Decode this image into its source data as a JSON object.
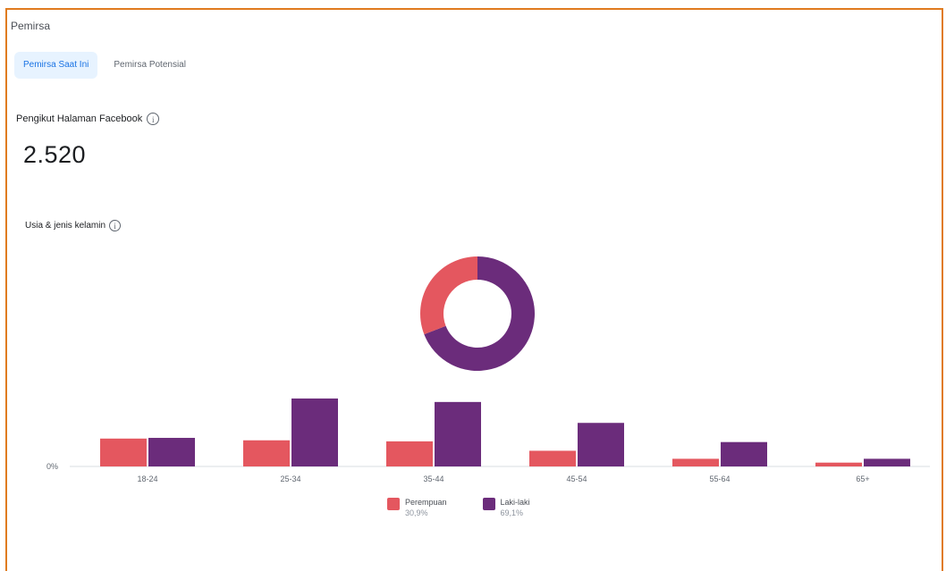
{
  "section": {
    "title": "Pemirsa"
  },
  "tabs": [
    {
      "label": "Pemirsa Saat Ini",
      "active": true
    },
    {
      "label": "Pemirsa Potensial",
      "active": false
    }
  ],
  "metric": {
    "label": "Pengikut Halaman Facebook",
    "value": "2.520",
    "info_icon": "info-icon"
  },
  "chart_label": "Usia & jenis kelamin",
  "colors": {
    "female": "#e4575f",
    "male": "#6b2c7b",
    "tab_active_bg": "#e7f3ff",
    "frame": "#e07b1f"
  },
  "chart_data": {
    "type": "bar",
    "categories": [
      "18-24",
      "25-34",
      "35-44",
      "45-54",
      "55-64",
      "65+"
    ],
    "series": [
      {
        "name": "Perempuan",
        "values": [
          8.0,
          7.5,
          7.2,
          4.5,
          2.2,
          1.1
        ]
      },
      {
        "name": "Laki-laki",
        "values": [
          8.2,
          19.5,
          18.5,
          12.5,
          7.0,
          2.2
        ]
      }
    ],
    "y_tick_label": "0%",
    "ylim": [
      0,
      20
    ],
    "donut": [
      {
        "name": "Perempuan",
        "value": 30.9
      },
      {
        "name": "Laki-laki",
        "value": 69.1
      }
    ]
  },
  "legend": [
    {
      "name": "Perempuan",
      "pct": "30,9%"
    },
    {
      "name": "Laki-laki",
      "pct": "69,1%"
    }
  ]
}
